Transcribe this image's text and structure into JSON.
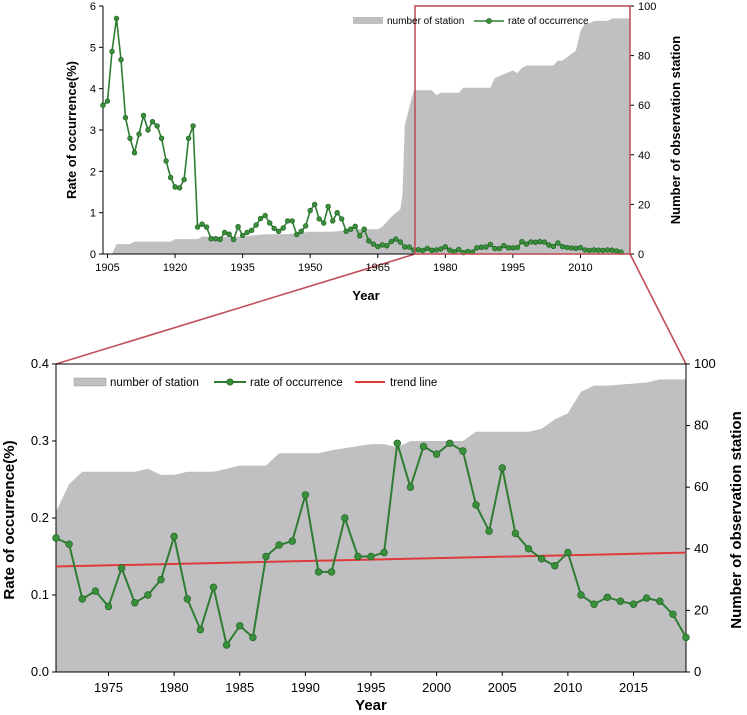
{
  "colors": {
    "area": "#c0c0c2",
    "line": "#2e7d32",
    "marker": "#3a8f3a",
    "trend": "#e03b3b",
    "connector": "#c0505a"
  },
  "chart_data": [
    {
      "type": "line",
      "name": "top-chart",
      "xlabel": "Year",
      "ylabel": "Rate of occurrence(%)",
      "y2label": "Number of observation station",
      "xlim": [
        1904,
        2021
      ],
      "ylim": [
        0,
        6
      ],
      "y2lim": [
        0,
        100
      ],
      "xticks": [
        "1905",
        "1920",
        "1935",
        "1950",
        "1965",
        "1980",
        "1995",
        "2010"
      ],
      "yticks": [
        "0",
        "1",
        "2",
        "3",
        "4",
        "5",
        "6"
      ],
      "y2ticks": [
        "0",
        "20",
        "40",
        "60",
        "80",
        "100"
      ],
      "legend": [
        "number of station",
        "rate of occurrence"
      ],
      "legend_position": "top-right",
      "series": [
        {
          "name": "number of station",
          "kind": "area",
          "axis": "right",
          "x": [
            1904,
            1906,
            1907,
            1910,
            1911,
            1919,
            1920,
            1925,
            1926,
            1927,
            1930,
            1935,
            1940,
            1945,
            1950,
            1955,
            1960,
            1965,
            1966,
            1968,
            1970,
            1970.5,
            1971,
            1973,
            1977,
            1978,
            1979,
            1983,
            1984,
            1990,
            1991,
            1995,
            1996,
            1997,
            1998,
            2004,
            2005,
            2006,
            2009,
            2010,
            2011,
            2012,
            2013,
            2016,
            2017,
            2019,
            2021
          ],
          "values": [
            0,
            0,
            4,
            4,
            5,
            5,
            6,
            6,
            7,
            7,
            7,
            7,
            8,
            8,
            9,
            9,
            10,
            10,
            11,
            15,
            18,
            24,
            52,
            66,
            66,
            64,
            65,
            65,
            67,
            67,
            71,
            74,
            73,
            75,
            76,
            76,
            78,
            78,
            82,
            90,
            93,
            93,
            94,
            94,
            95,
            95,
            95
          ]
        },
        {
          "name": "rate of occurrence",
          "kind": "line",
          "axis": "left",
          "x": [
            1904,
            1905,
            1906,
            1907,
            1908,
            1909,
            1910,
            1911,
            1912,
            1913,
            1914,
            1915,
            1916,
            1917,
            1918,
            1919,
            1920,
            1921,
            1922,
            1923,
            1924,
            1925,
            1926,
            1927,
            1928,
            1929,
            1930,
            1931,
            1932,
            1933,
            1934,
            1935,
            1936,
            1937,
            1938,
            1939,
            1940,
            1941,
            1942,
            1943,
            1944,
            1945,
            1946,
            1947,
            1948,
            1949,
            1950,
            1951,
            1952,
            1953,
            1954,
            1955,
            1956,
            1957,
            1958,
            1959,
            1960,
            1961,
            1962,
            1963,
            1964,
            1965,
            1966,
            1967,
            1968,
            1969,
            1970,
            1971,
            1972,
            1973,
            1974,
            1975,
            1976,
            1977,
            1978,
            1979,
            1980,
            1981,
            1982,
            1983,
            1984,
            1985,
            1986,
            1987,
            1988,
            1989,
            1990,
            1991,
            1992,
            1993,
            1994,
            1995,
            1996,
            1997,
            1998,
            1999,
            2000,
            2001,
            2002,
            2003,
            2004,
            2005,
            2006,
            2007,
            2008,
            2009,
            2010,
            2011,
            2012,
            2013,
            2014,
            2015,
            2016,
            2017,
            2018,
            2019
          ],
          "values": [
            3.6,
            3.7,
            4.9,
            5.7,
            4.7,
            3.3,
            2.8,
            2.45,
            2.9,
            3.35,
            3.0,
            3.2,
            3.1,
            2.8,
            2.25,
            1.85,
            1.62,
            1.6,
            1.8,
            2.8,
            3.1,
            0.65,
            0.72,
            0.65,
            0.37,
            0.37,
            0.35,
            0.52,
            0.48,
            0.35,
            0.66,
            0.45,
            0.52,
            0.57,
            0.7,
            0.86,
            0.93,
            0.75,
            0.62,
            0.55,
            0.63,
            0.8,
            0.8,
            0.47,
            0.55,
            0.68,
            1.05,
            1.2,
            0.85,
            0.75,
            1.15,
            0.8,
            1.0,
            0.85,
            0.55,
            0.6,
            0.67,
            0.44,
            0.6,
            0.32,
            0.24,
            0.18,
            0.22,
            0.2,
            0.3,
            0.36,
            0.29,
            0.17,
            0.166,
            0.095,
            0.105,
            0.085,
            0.135,
            0.09,
            0.1,
            0.12,
            0.175,
            0.095,
            0.055,
            0.11,
            0.035,
            0.06,
            0.045,
            0.15,
            0.165,
            0.17,
            0.23,
            0.13,
            0.13,
            0.2,
            0.15,
            0.15,
            0.155,
            0.297,
            0.24,
            0.293,
            0.283,
            0.297,
            0.287,
            0.217,
            0.183,
            0.265,
            0.18,
            0.16,
            0.147,
            0.138,
            0.155,
            0.1,
            0.088,
            0.097,
            0.092,
            0.088,
            0.096,
            0.092,
            0.075,
            0.045
          ]
        }
      ]
    },
    {
      "type": "line",
      "name": "bottom-chart",
      "xlabel": "Year",
      "ylabel": "Rate of occurrence(%)",
      "y2label": "Number of observation station",
      "xlim": [
        1971,
        2019
      ],
      "ylim": [
        0,
        0.4
      ],
      "y2lim": [
        0,
        100
      ],
      "xticks": [
        "1975",
        "1980",
        "1985",
        "1990",
        "1995",
        "2000",
        "2005",
        "2010",
        "2015"
      ],
      "yticks": [
        "0.0",
        "0.1",
        "0.2",
        "0.3",
        "0.4"
      ],
      "y2ticks": [
        "0",
        "20",
        "40",
        "60",
        "80",
        "100"
      ],
      "legend": [
        "number of station",
        "rate of occurrence",
        "trend line"
      ],
      "legend_position": "top",
      "series": [
        {
          "name": "number of station",
          "kind": "area",
          "axis": "right",
          "x": [
            1971,
            1972,
            1973,
            1977,
            1978,
            1979,
            1980,
            1981,
            1983,
            1984,
            1985,
            1987,
            1988,
            1990,
            1991,
            1992,
            1995,
            1996,
            1997,
            1998,
            2002,
            2003,
            2007,
            2008,
            2009,
            2010,
            2011,
            2012,
            2013,
            2016,
            2017,
            2019
          ],
          "values": [
            52,
            61,
            65,
            65,
            66,
            64,
            64,
            65,
            65,
            66,
            67,
            67,
            71,
            71,
            71,
            72,
            74,
            74,
            73,
            75,
            75,
            78,
            78,
            79,
            82,
            84,
            91,
            93,
            93,
            94,
            95,
            95
          ]
        },
        {
          "name": "rate of occurrence",
          "kind": "line",
          "axis": "left",
          "x": [
            1971,
            1972,
            1973,
            1974,
            1975,
            1976,
            1977,
            1978,
            1979,
            1980,
            1981,
            1982,
            1983,
            1984,
            1985,
            1986,
            1987,
            1988,
            1989,
            1990,
            1991,
            1992,
            1993,
            1994,
            1995,
            1996,
            1997,
            1998,
            1999,
            2000,
            2001,
            2002,
            2003,
            2004,
            2005,
            2006,
            2007,
            2008,
            2009,
            2010,
            2011,
            2012,
            2013,
            2014,
            2015,
            2016,
            2017,
            2018,
            2019
          ],
          "values": [
            0.174,
            0.166,
            0.095,
            0.105,
            0.085,
            0.135,
            0.09,
            0.1,
            0.12,
            0.176,
            0.095,
            0.055,
            0.11,
            0.035,
            0.06,
            0.045,
            0.15,
            0.165,
            0.17,
            0.23,
            0.13,
            0.13,
            0.2,
            0.15,
            0.15,
            0.155,
            0.297,
            0.24,
            0.293,
            0.283,
            0.297,
            0.287,
            0.217,
            0.183,
            0.265,
            0.18,
            0.16,
            0.147,
            0.138,
            0.155,
            0.1,
            0.088,
            0.097,
            0.092,
            0.088,
            0.096,
            0.092,
            0.075,
            0.045
          ]
        },
        {
          "name": "trend line",
          "kind": "line",
          "axis": "left",
          "x": [
            1971,
            2019
          ],
          "values": [
            0.137,
            0.155
          ]
        }
      ]
    }
  ]
}
